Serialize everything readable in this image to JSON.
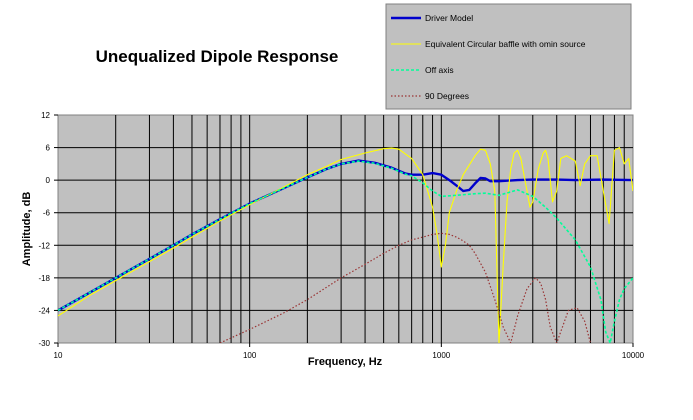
{
  "chart_data": {
    "type": "line",
    "title": "Unequalized Dipole Response",
    "xlabel": "Frequency, Hz",
    "ylabel": "Amplitude, dB",
    "x_scale": "log",
    "xlim": [
      10,
      10000
    ],
    "ylim": [
      -30,
      12
    ],
    "x_ticks": [
      10,
      100,
      1000,
      10000
    ],
    "x_tick_labels": [
      "10",
      "100",
      "1000",
      "10000"
    ],
    "y_ticks": [
      -30,
      -24,
      -18,
      -12,
      -6,
      0,
      6,
      12
    ],
    "y_tick_labels": [
      "-30",
      "-24",
      "-18",
      "-12",
      "-6",
      "0",
      "6",
      "12"
    ],
    "grid": true,
    "plot_background": "#c0c0c0",
    "legend_position": "top-right",
    "legend_background": "#c0c0c0",
    "series": [
      {
        "name": "Driver Model",
        "color": "#0000cc",
        "style": "solid-thick",
        "points": [
          [
            10,
            -24
          ],
          [
            15,
            -20.5
          ],
          [
            20,
            -18
          ],
          [
            30,
            -14.5
          ],
          [
            40,
            -12
          ],
          [
            50,
            -10
          ],
          [
            70,
            -7.2
          ],
          [
            100,
            -4.3
          ],
          [
            150,
            -1.5
          ],
          [
            200,
            0.5
          ],
          [
            250,
            2
          ],
          [
            300,
            3
          ],
          [
            370,
            3.6
          ],
          [
            450,
            3.2
          ],
          [
            550,
            2.3
          ],
          [
            650,
            1.2
          ],
          [
            700,
            1
          ],
          [
            800,
            1
          ],
          [
            900,
            1.3
          ],
          [
            1000,
            1
          ],
          [
            1100,
            0
          ],
          [
            1200,
            -1
          ],
          [
            1300,
            -2
          ],
          [
            1400,
            -1.8
          ],
          [
            1500,
            -0.6
          ],
          [
            1600,
            0.4
          ],
          [
            1700,
            0.3
          ],
          [
            1800,
            -0.2
          ],
          [
            2000,
            -0.2
          ],
          [
            2500,
            0
          ],
          [
            3000,
            0.1
          ],
          [
            4000,
            0.1
          ],
          [
            5000,
            0
          ],
          [
            7000,
            0.1
          ],
          [
            10000,
            0
          ]
        ]
      },
      {
        "name": "Equivalent Circular baffle with omin source",
        "color": "#ffff00",
        "style": "solid",
        "points": [
          [
            10,
            -25
          ],
          [
            15,
            -21
          ],
          [
            20,
            -18.5
          ],
          [
            30,
            -15
          ],
          [
            40,
            -12.5
          ],
          [
            50,
            -10.5
          ],
          [
            70,
            -7.5
          ],
          [
            100,
            -4.5
          ],
          [
            150,
            -1.3
          ],
          [
            200,
            1
          ],
          [
            250,
            2.5
          ],
          [
            300,
            3.8
          ],
          [
            400,
            5
          ],
          [
            500,
            5.8
          ],
          [
            550,
            5.9
          ],
          [
            600,
            5.7
          ],
          [
            700,
            4
          ],
          [
            800,
            1
          ],
          [
            900,
            -5
          ],
          [
            950,
            -10
          ],
          [
            1000,
            -16
          ],
          [
            1050,
            -12
          ],
          [
            1100,
            -6
          ],
          [
            1200,
            -2
          ],
          [
            1300,
            1
          ],
          [
            1500,
            4.5
          ],
          [
            1600,
            5.7
          ],
          [
            1700,
            5.5
          ],
          [
            1800,
            3
          ],
          [
            1900,
            -2
          ],
          [
            2000,
            -30
          ],
          [
            2100,
            -16
          ],
          [
            2200,
            -4
          ],
          [
            2300,
            2
          ],
          [
            2400,
            5
          ],
          [
            2500,
            5.5
          ],
          [
            2600,
            4
          ],
          [
            2800,
            -2
          ],
          [
            2900,
            -5
          ],
          [
            3000,
            -4
          ],
          [
            3200,
            2
          ],
          [
            3400,
            5
          ],
          [
            3500,
            5.5
          ],
          [
            3600,
            4
          ],
          [
            3800,
            -4
          ],
          [
            4000,
            -2
          ],
          [
            4200,
            4
          ],
          [
            4500,
            4.5
          ],
          [
            5000,
            3.5
          ],
          [
            5300,
            -1
          ],
          [
            5600,
            3
          ],
          [
            6000,
            4.5
          ],
          [
            6500,
            4.5
          ],
          [
            7000,
            -2
          ],
          [
            7500,
            -8
          ],
          [
            8000,
            5.5
          ],
          [
            8500,
            6
          ],
          [
            9000,
            3
          ],
          [
            9500,
            4
          ],
          [
            10000,
            -2
          ]
        ]
      },
      {
        "name": "Off axis",
        "color": "#00ff99",
        "style": "dashed",
        "points": [
          [
            10,
            -24
          ],
          [
            15,
            -20.5
          ],
          [
            20,
            -18
          ],
          [
            30,
            -14.5
          ],
          [
            40,
            -12
          ],
          [
            50,
            -10
          ],
          [
            70,
            -7.2
          ],
          [
            100,
            -4.3
          ],
          [
            150,
            -1.5
          ],
          [
            200,
            0.5
          ],
          [
            250,
            2
          ],
          [
            300,
            3
          ],
          [
            370,
            3.5
          ],
          [
            450,
            3.1
          ],
          [
            550,
            2.2
          ],
          [
            650,
            1.1
          ],
          [
            700,
            0.8
          ],
          [
            800,
            -0.5
          ],
          [
            900,
            -2
          ],
          [
            1000,
            -3
          ],
          [
            1200,
            -2.8
          ],
          [
            1500,
            -2.5
          ],
          [
            1700,
            -2.4
          ],
          [
            2000,
            -2.8
          ],
          [
            2500,
            -1.8
          ],
          [
            3000,
            -3
          ],
          [
            3500,
            -5
          ],
          [
            4000,
            -7
          ],
          [
            5000,
            -11
          ],
          [
            6000,
            -16
          ],
          [
            6800,
            -22
          ],
          [
            7200,
            -28
          ],
          [
            7600,
            -30
          ],
          [
            8000,
            -26
          ],
          [
            8500,
            -22
          ],
          [
            9000,
            -20
          ],
          [
            10000,
            -18
          ]
        ]
      },
      {
        "name": "90 Degrees",
        "color": "#993333",
        "style": "dotted",
        "points": [
          [
            70,
            -30
          ],
          [
            100,
            -27.5
          ],
          [
            150,
            -24.5
          ],
          [
            200,
            -22
          ],
          [
            300,
            -18
          ],
          [
            400,
            -15.5
          ],
          [
            500,
            -13.5
          ],
          [
            600,
            -12
          ],
          [
            700,
            -11
          ],
          [
            800,
            -10.5
          ],
          [
            900,
            -10
          ],
          [
            1000,
            -9.8
          ],
          [
            1100,
            -10
          ],
          [
            1200,
            -10.5
          ],
          [
            1300,
            -11.2
          ],
          [
            1400,
            -12
          ],
          [
            1500,
            -13.5
          ],
          [
            1700,
            -17
          ],
          [
            1900,
            -22
          ],
          [
            2100,
            -27
          ],
          [
            2300,
            -30
          ],
          [
            2500,
            -25
          ],
          [
            2800,
            -20
          ],
          [
            3100,
            -18
          ],
          [
            3300,
            -19
          ],
          [
            3500,
            -22
          ],
          [
            3700,
            -27
          ],
          [
            4000,
            -30
          ],
          [
            4600,
            -24
          ],
          [
            5100,
            -23.5
          ],
          [
            5600,
            -26
          ],
          [
            6000,
            -30
          ]
        ]
      }
    ]
  }
}
